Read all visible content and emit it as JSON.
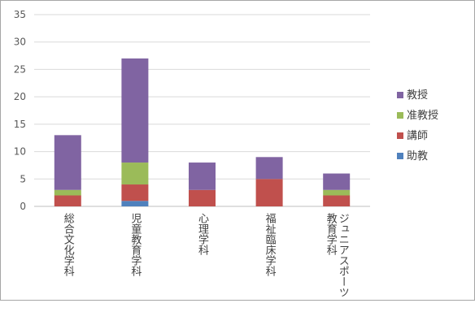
{
  "chart_data": {
    "type": "bar",
    "stacked": true,
    "categories": [
      "総合文化学科",
      "児童教育学科",
      "心理学科",
      "福祉臨床学科",
      "ジュニアスポーツ教育学科"
    ],
    "category_lines": [
      [
        "総合文化学科"
      ],
      [
        "児童教育学科"
      ],
      [
        "心理学科"
      ],
      [
        "福祉臨床学科"
      ],
      [
        "ジュニアスポーツ",
        "教育学科"
      ]
    ],
    "series": [
      {
        "name": "助教",
        "color": "#4f81bd",
        "values": [
          0,
          1,
          0,
          0,
          0
        ]
      },
      {
        "name": "講師",
        "color": "#c0504d",
        "values": [
          2,
          3,
          3,
          5,
          2
        ]
      },
      {
        "name": "准教授",
        "color": "#9bbb59",
        "values": [
          1,
          4,
          0,
          0,
          1
        ]
      },
      {
        "name": "教授",
        "color": "#8064a2",
        "values": [
          10,
          19,
          5,
          4,
          3
        ]
      }
    ],
    "legend_order": [
      "教授",
      "准教授",
      "講師",
      "助教"
    ],
    "legend_position": "right",
    "yticks": [
      0,
      5,
      10,
      15,
      20,
      25,
      30,
      35
    ],
    "ylim": [
      0,
      35
    ],
    "grid": true,
    "title": "",
    "xlabel": "",
    "ylabel": ""
  }
}
